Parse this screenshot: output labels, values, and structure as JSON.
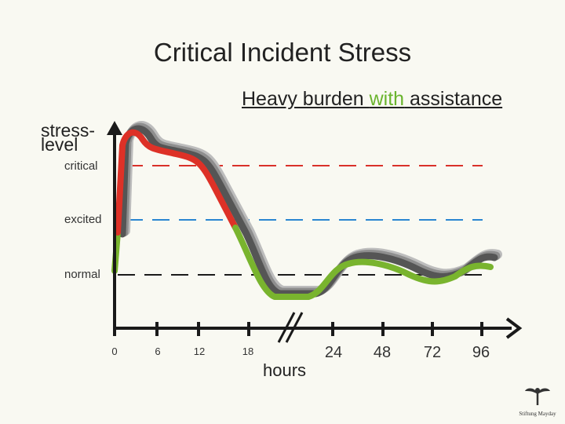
{
  "title": "Critical Incident Stress",
  "subtitle": {
    "before": "Heavy burden ",
    "highlight": "with",
    "after": " assistance"
  },
  "colors": {
    "critical_line": "#d9312a",
    "excited_line": "#2a86d1",
    "normal_line": "#1a1a1a",
    "curve_red": "#dd3127",
    "curve_green": "#79b42e",
    "curve_shadow": "#555555",
    "axis": "#1a1a1a"
  },
  "logo": {
    "icon": "seedling-icon",
    "text": "Stiftung Mayday"
  },
  "chart_data": {
    "type": "line",
    "ylabel": [
      "stress-",
      "level"
    ],
    "xlabel": "hours",
    "levels": [
      {
        "name": "critical",
        "color": "#d9312a"
      },
      {
        "name": "excited",
        "color": "#2a86d1"
      },
      {
        "name": "normal",
        "color": "#1a1a1a"
      }
    ],
    "x_ticks": [
      "0",
      "6",
      "12",
      "18",
      "24",
      "48",
      "72",
      "96"
    ],
    "axis_break": "between 18 and 24 hours",
    "series": [
      {
        "points": [
          [
            "0",
            "normal"
          ],
          [
            "0.5",
            "critical"
          ],
          [
            "1",
            "above critical"
          ],
          [
            "2",
            "above critical"
          ],
          [
            "3",
            "slightly above critical"
          ],
          [
            "6",
            "slightly above critical"
          ],
          [
            "12",
            "critical"
          ],
          [
            "15",
            "excited"
          ],
          [
            "18",
            "between excited and normal"
          ],
          [
            "18+",
            "below normal"
          ],
          [
            "24",
            "below normal"
          ],
          [
            "30",
            "slightly above normal"
          ],
          [
            "48",
            "slightly above normal"
          ],
          [
            "72",
            "slightly below normal"
          ],
          [
            "96",
            "slightly above normal"
          ]
        ]
      }
    ],
    "segments": [
      {
        "color": "red",
        "from_level": "excited",
        "to_level": "excited"
      },
      {
        "color": "green",
        "from_level": "excited",
        "to_level": "normal"
      }
    ]
  }
}
